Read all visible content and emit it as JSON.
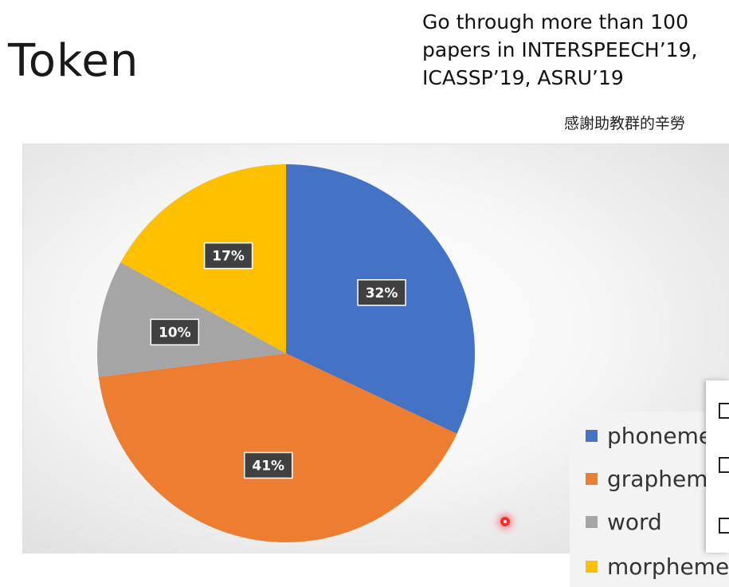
{
  "slide": {
    "title": "Token",
    "subtitle_lines": [
      "Go through more than 100",
      "papers in INTERSPEECH’19,",
      "ICASSP’19, ASRU’19"
    ],
    "thanks": "感謝助教群的辛勞"
  },
  "chart_data": {
    "type": "pie",
    "categories": [
      "phoneme",
      "grapheme",
      "word",
      "morpheme"
    ],
    "values": [
      32,
      41,
      10,
      17
    ],
    "data_labels": [
      "32%",
      "41%",
      "10%",
      "17%"
    ],
    "colors": [
      "#4472c4",
      "#ed7d31",
      "#a5a5a5",
      "#ffc000"
    ],
    "start_angle_deg": 0,
    "direction": "clockwise",
    "legend_position": "right"
  },
  "toolbar": {
    "icons": [
      "slide-icon",
      "notes-icon",
      "comment-icon"
    ]
  },
  "pointer": {
    "color": "#ff2a2a"
  }
}
